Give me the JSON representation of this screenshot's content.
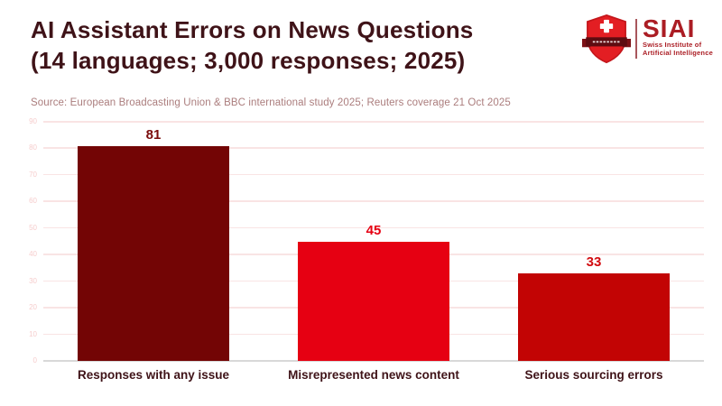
{
  "header": {
    "title_line1": "AI Assistant Errors on News Questions",
    "title_line2": "(14 languages; 3,000 responses; 2025)",
    "source": "Source: European Broadcasting Union & BBC international study 2025; Reuters coverage 21 Oct 2025"
  },
  "logo": {
    "acronym": "SIAI",
    "name_line1": "Swiss Institute of",
    "name_line2": "Artificial Intelligence",
    "shield_icon": "siai-shield-icon",
    "brand_red": "#ab1d24",
    "shield_red": "#e31e23",
    "ribbon_maroon": "#5e0c11"
  },
  "chart_data": {
    "type": "bar",
    "title": "AI Assistant Errors on News Questions (14 languages; 3,000 responses; 2025)",
    "categories": [
      "Responses with any issue",
      "Misrepresented news content",
      "Serious sourcing errors"
    ],
    "values": [
      81,
      45,
      33
    ],
    "bar_colors": [
      "#730505",
      "#e60012",
      "#c20404"
    ],
    "value_label_colors": [
      "#7a0b0b",
      "#e60012",
      "#d20a0f"
    ],
    "xlabel": "",
    "ylabel": "",
    "ylim": [
      0,
      90
    ],
    "yticks": [
      0,
      10,
      20,
      30,
      40,
      50,
      60,
      70,
      80,
      90
    ],
    "grid": true,
    "legend": false
  },
  "colors": {
    "background": "#ffffff",
    "title_text": "#3f1318",
    "source_text": "#ab7d7d",
    "gridline": "#f9e4e4",
    "axis_line": "#d8d8d8",
    "tick_label": "#f6cdcd",
    "category_label": "#3f1318"
  }
}
